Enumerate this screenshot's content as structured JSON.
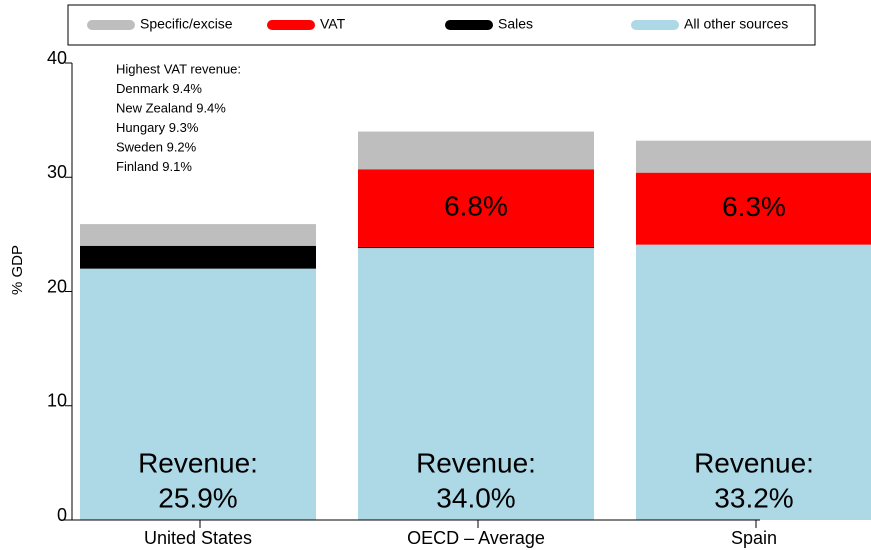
{
  "chart_data": {
    "type": "stacked_bar",
    "ylabel": "% GDP",
    "categories": [
      "United States",
      "OECD – Average",
      "Spain"
    ],
    "series": [
      {
        "name": "Specific/excise",
        "color": "#bebebe",
        "values": [
          1.9,
          3.3,
          2.8
        ]
      },
      {
        "name": "VAT",
        "color": "#ff0000",
        "values": [
          0.0,
          6.8,
          6.3
        ],
        "value_labels": [
          null,
          "6.8%",
          "6.3%"
        ]
      },
      {
        "name": "Sales",
        "color": "#000000",
        "values": [
          2.0,
          0.1,
          0.0
        ]
      },
      {
        "name": "All other sources",
        "color": "#add8e6",
        "values": [
          22.0,
          23.8,
          24.1
        ]
      }
    ],
    "totals": [
      25.9,
      34.0,
      33.2
    ],
    "total_labels": [
      "25.9%",
      "34.0%",
      "33.2%"
    ],
    "total_prefix": "Revenue:",
    "annotation": [
      "Highest VAT revenue:",
      "Denmark 9.4%",
      "New Zealand 9.4%",
      "Hungary 9.3%",
      "Sweden 9.2%",
      "Finland 9.1%"
    ],
    "ylim": [
      0,
      40
    ],
    "yticks": [
      0,
      10,
      20,
      30,
      40
    ],
    "legend": "top"
  }
}
